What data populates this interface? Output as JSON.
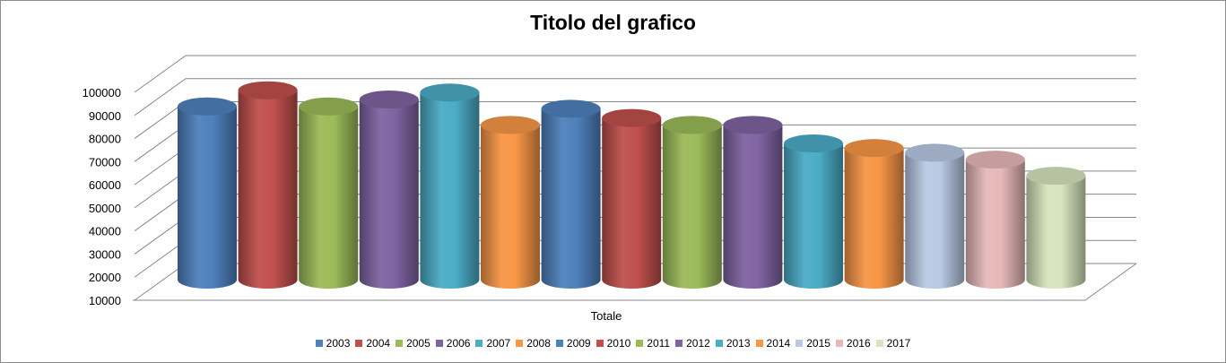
{
  "chart_data": {
    "type": "bar",
    "title": "Titolo del grafico",
    "categories": [
      "Totale"
    ],
    "ylim": [
      10000,
      100000
    ],
    "yticks": [
      10000,
      20000,
      30000,
      40000,
      50000,
      60000,
      70000,
      80000,
      90000,
      100000
    ],
    "grid": true,
    "legend_position": "bottom",
    "series": [
      {
        "name": "2003",
        "values": [
          90000
        ],
        "color": "#4f81bd"
      },
      {
        "name": "2004",
        "values": [
          97000
        ],
        "color": "#c0504d"
      },
      {
        "name": "2005",
        "values": [
          90000
        ],
        "color": "#9bbb59"
      },
      {
        "name": "2006",
        "values": [
          93000
        ],
        "color": "#8064a2"
      },
      {
        "name": "2007",
        "values": [
          96000
        ],
        "color": "#4bacc6"
      },
      {
        "name": "2008",
        "values": [
          82000
        ],
        "color": "#f79646"
      },
      {
        "name": "2009",
        "values": [
          89000
        ],
        "color": "#4f81bd"
      },
      {
        "name": "2010",
        "values": [
          85000
        ],
        "color": "#c0504d"
      },
      {
        "name": "2011",
        "values": [
          82000
        ],
        "color": "#9bbb59"
      },
      {
        "name": "2012",
        "values": [
          82000
        ],
        "color": "#8064a2"
      },
      {
        "name": "2013",
        "values": [
          74000
        ],
        "color": "#4bacc6"
      },
      {
        "name": "2014",
        "values": [
          72000
        ],
        "color": "#f79646"
      },
      {
        "name": "2015",
        "values": [
          70000
        ],
        "color": "#b9c9e4"
      },
      {
        "name": "2016",
        "values": [
          67000
        ],
        "color": "#e6b9b8"
      },
      {
        "name": "2017",
        "values": [
          60000
        ],
        "color": "#d7e4bd"
      }
    ]
  }
}
